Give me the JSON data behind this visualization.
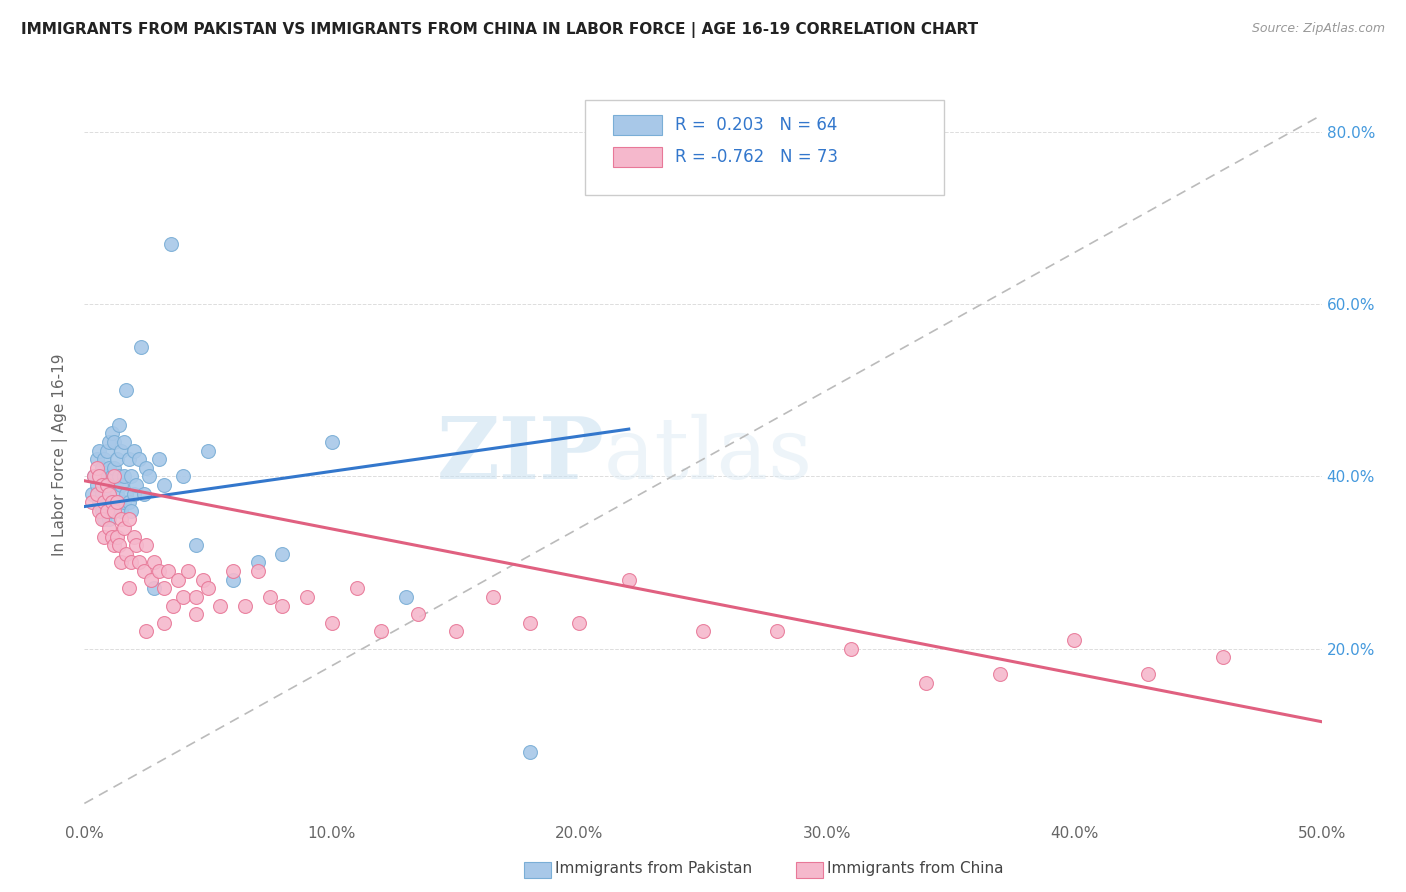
{
  "title": "IMMIGRANTS FROM PAKISTAN VS IMMIGRANTS FROM CHINA IN LABOR FORCE | AGE 16-19 CORRELATION CHART",
  "source": "Source: ZipAtlas.com",
  "ylabel": "In Labor Force | Age 16-19",
  "xlim": [
    0.0,
    0.5
  ],
  "ylim": [
    0.0,
    0.85
  ],
  "xticks": [
    0.0,
    0.1,
    0.2,
    0.3,
    0.4,
    0.5
  ],
  "yticks": [
    0.0,
    0.2,
    0.4,
    0.6,
    0.8
  ],
  "xticklabels": [
    "0.0%",
    "10.0%",
    "20.0%",
    "30.0%",
    "40.0%",
    "50.0%"
  ],
  "yticklabels_right": [
    "",
    "20.0%",
    "40.0%",
    "60.0%",
    "80.0%"
  ],
  "pakistan_color": "#a8c8e8",
  "pakistan_edge": "#7aaed6",
  "china_color": "#f5b8cc",
  "china_edge": "#e87898",
  "pakistan_line_color": "#3377cc",
  "china_line_color": "#e06080",
  "trendline_dash_color": "#bbbbbb",
  "watermark_zip": "ZIP",
  "watermark_atlas": "atlas",
  "pakistan_R": "0.203",
  "pakistan_N": "64",
  "china_R": "-0.762",
  "china_N": "73",
  "legend_text_color": "#3377cc",
  "legend_R_color": "#3377cc",
  "pakistan_x": [
    0.003,
    0.004,
    0.005,
    0.005,
    0.006,
    0.006,
    0.006,
    0.007,
    0.007,
    0.007,
    0.008,
    0.008,
    0.008,
    0.009,
    0.009,
    0.009,
    0.01,
    0.01,
    0.01,
    0.01,
    0.011,
    0.011,
    0.011,
    0.012,
    0.012,
    0.012,
    0.013,
    0.013,
    0.014,
    0.014,
    0.014,
    0.015,
    0.015,
    0.015,
    0.016,
    0.016,
    0.016,
    0.017,
    0.017,
    0.018,
    0.018,
    0.019,
    0.019,
    0.02,
    0.02,
    0.021,
    0.022,
    0.023,
    0.024,
    0.025,
    0.026,
    0.028,
    0.03,
    0.032,
    0.035,
    0.04,
    0.045,
    0.05,
    0.06,
    0.07,
    0.08,
    0.1,
    0.13,
    0.18
  ],
  "pakistan_y": [
    0.38,
    0.4,
    0.39,
    0.42,
    0.37,
    0.4,
    0.43,
    0.36,
    0.38,
    0.41,
    0.35,
    0.39,
    0.42,
    0.37,
    0.4,
    0.43,
    0.35,
    0.38,
    0.41,
    0.44,
    0.36,
    0.4,
    0.45,
    0.37,
    0.41,
    0.44,
    0.38,
    0.42,
    0.37,
    0.4,
    0.46,
    0.36,
    0.39,
    0.43,
    0.37,
    0.4,
    0.44,
    0.38,
    0.5,
    0.37,
    0.42,
    0.36,
    0.4,
    0.38,
    0.43,
    0.39,
    0.42,
    0.55,
    0.38,
    0.41,
    0.4,
    0.27,
    0.42,
    0.39,
    0.67,
    0.4,
    0.32,
    0.43,
    0.28,
    0.3,
    0.31,
    0.44,
    0.26,
    0.08
  ],
  "china_x": [
    0.003,
    0.004,
    0.005,
    0.005,
    0.006,
    0.006,
    0.007,
    0.007,
    0.008,
    0.008,
    0.009,
    0.009,
    0.01,
    0.01,
    0.011,
    0.011,
    0.012,
    0.012,
    0.013,
    0.013,
    0.014,
    0.015,
    0.015,
    0.016,
    0.017,
    0.018,
    0.019,
    0.02,
    0.021,
    0.022,
    0.024,
    0.025,
    0.027,
    0.028,
    0.03,
    0.032,
    0.034,
    0.036,
    0.038,
    0.04,
    0.042,
    0.045,
    0.048,
    0.05,
    0.055,
    0.06,
    0.065,
    0.07,
    0.075,
    0.08,
    0.09,
    0.1,
    0.11,
    0.12,
    0.135,
    0.15,
    0.165,
    0.18,
    0.2,
    0.22,
    0.25,
    0.28,
    0.31,
    0.34,
    0.37,
    0.4,
    0.43,
    0.46,
    0.012,
    0.018,
    0.025,
    0.032,
    0.045
  ],
  "china_y": [
    0.37,
    0.4,
    0.38,
    0.41,
    0.36,
    0.4,
    0.35,
    0.39,
    0.33,
    0.37,
    0.36,
    0.39,
    0.34,
    0.38,
    0.33,
    0.37,
    0.32,
    0.36,
    0.33,
    0.37,
    0.32,
    0.35,
    0.3,
    0.34,
    0.31,
    0.35,
    0.3,
    0.33,
    0.32,
    0.3,
    0.29,
    0.32,
    0.28,
    0.3,
    0.29,
    0.27,
    0.29,
    0.25,
    0.28,
    0.26,
    0.29,
    0.26,
    0.28,
    0.27,
    0.25,
    0.29,
    0.25,
    0.29,
    0.26,
    0.25,
    0.26,
    0.23,
    0.27,
    0.22,
    0.24,
    0.22,
    0.26,
    0.23,
    0.23,
    0.28,
    0.22,
    0.22,
    0.2,
    0.16,
    0.17,
    0.21,
    0.17,
    0.19,
    0.4,
    0.27,
    0.22,
    0.23,
    0.24
  ],
  "pakistan_tline_x0": 0.0,
  "pakistan_tline_x1": 0.22,
  "pakistan_tline_y0": 0.365,
  "pakistan_tline_y1": 0.455,
  "china_tline_x0": 0.0,
  "china_tline_x1": 0.5,
  "china_tline_y0": 0.395,
  "china_tline_y1": 0.115
}
